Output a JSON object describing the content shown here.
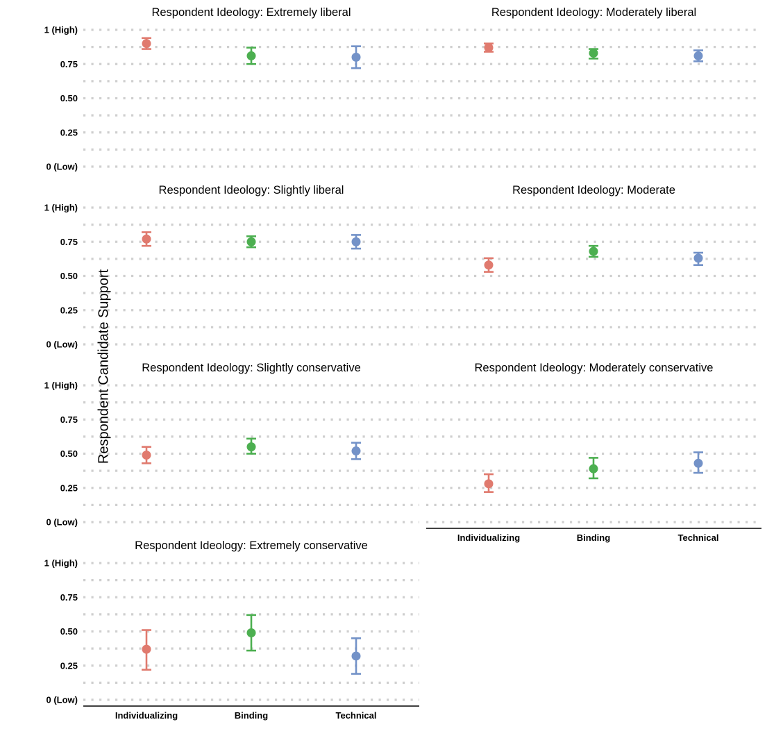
{
  "ylabel": "Respondent Candidate Support",
  "colors": {
    "Individualizing": "#E07A6E",
    "Binding": "#4CAF50",
    "Technical": "#7392C8",
    "grid": "#cfcfcf"
  },
  "chart_data": [
    {
      "type": "scatter",
      "title": "Respondent Ideology: Extremely liberal",
      "categories": [
        "Individualizing",
        "Binding",
        "Technical"
      ],
      "values": [
        0.9,
        0.81,
        0.8
      ],
      "ci_low": [
        0.86,
        0.75,
        0.72
      ],
      "ci_high": [
        0.94,
        0.87,
        0.88
      ],
      "ylim": [
        0,
        1
      ],
      "yticks": [
        "0 (Low)",
        "0.25",
        "0.50",
        "0.75",
        "1 (High)"
      ],
      "show_xaxis": false
    },
    {
      "type": "scatter",
      "title": "Respondent Ideology: Moderately liberal",
      "categories": [
        "Individualizing",
        "Binding",
        "Technical"
      ],
      "values": [
        0.87,
        0.83,
        0.81
      ],
      "ci_low": [
        0.84,
        0.79,
        0.77
      ],
      "ci_high": [
        0.9,
        0.86,
        0.85
      ],
      "ylim": [
        0,
        1
      ],
      "yticks": [],
      "show_xaxis": false
    },
    {
      "type": "scatter",
      "title": "Respondent Ideology: Slightly liberal",
      "categories": [
        "Individualizing",
        "Binding",
        "Technical"
      ],
      "values": [
        0.77,
        0.75,
        0.75
      ],
      "ci_low": [
        0.72,
        0.71,
        0.7
      ],
      "ci_high": [
        0.82,
        0.79,
        0.8
      ],
      "ylim": [
        0,
        1
      ],
      "yticks": [
        "0 (Low)",
        "0.25",
        "0.50",
        "0.75",
        "1 (High)"
      ],
      "show_xaxis": false
    },
    {
      "type": "scatter",
      "title": "Respondent Ideology: Moderate",
      "categories": [
        "Individualizing",
        "Binding",
        "Technical"
      ],
      "values": [
        0.58,
        0.68,
        0.63
      ],
      "ci_low": [
        0.53,
        0.64,
        0.58
      ],
      "ci_high": [
        0.63,
        0.72,
        0.67
      ],
      "ylim": [
        0,
        1
      ],
      "yticks": [],
      "show_xaxis": false
    },
    {
      "type": "scatter",
      "title": "Respondent Ideology: Slightly conservative",
      "categories": [
        "Individualizing",
        "Binding",
        "Technical"
      ],
      "values": [
        0.49,
        0.55,
        0.52
      ],
      "ci_low": [
        0.43,
        0.5,
        0.46
      ],
      "ci_high": [
        0.55,
        0.61,
        0.58
      ],
      "ylim": [
        0,
        1
      ],
      "yticks": [
        "0 (Low)",
        "0.25",
        "0.50",
        "0.75",
        "1 (High)"
      ],
      "show_xaxis": false
    },
    {
      "type": "scatter",
      "title": "Respondent Ideology: Moderately conservative",
      "categories": [
        "Individualizing",
        "Binding",
        "Technical"
      ],
      "values": [
        0.28,
        0.39,
        0.43
      ],
      "ci_low": [
        0.22,
        0.32,
        0.36
      ],
      "ci_high": [
        0.35,
        0.47,
        0.51
      ],
      "ylim": [
        0,
        1
      ],
      "yticks": [],
      "show_xaxis": true
    },
    {
      "type": "scatter",
      "title": "Respondent Ideology: Extremely conservative",
      "categories": [
        "Individualizing",
        "Binding",
        "Technical"
      ],
      "values": [
        0.37,
        0.49,
        0.32
      ],
      "ci_low": [
        0.22,
        0.36,
        0.19
      ],
      "ci_high": [
        0.51,
        0.62,
        0.45
      ],
      "ylim": [
        0,
        1
      ],
      "yticks": [
        "0 (Low)",
        "0.25",
        "0.50",
        "0.75",
        "1 (High)"
      ],
      "show_xaxis": true
    }
  ]
}
